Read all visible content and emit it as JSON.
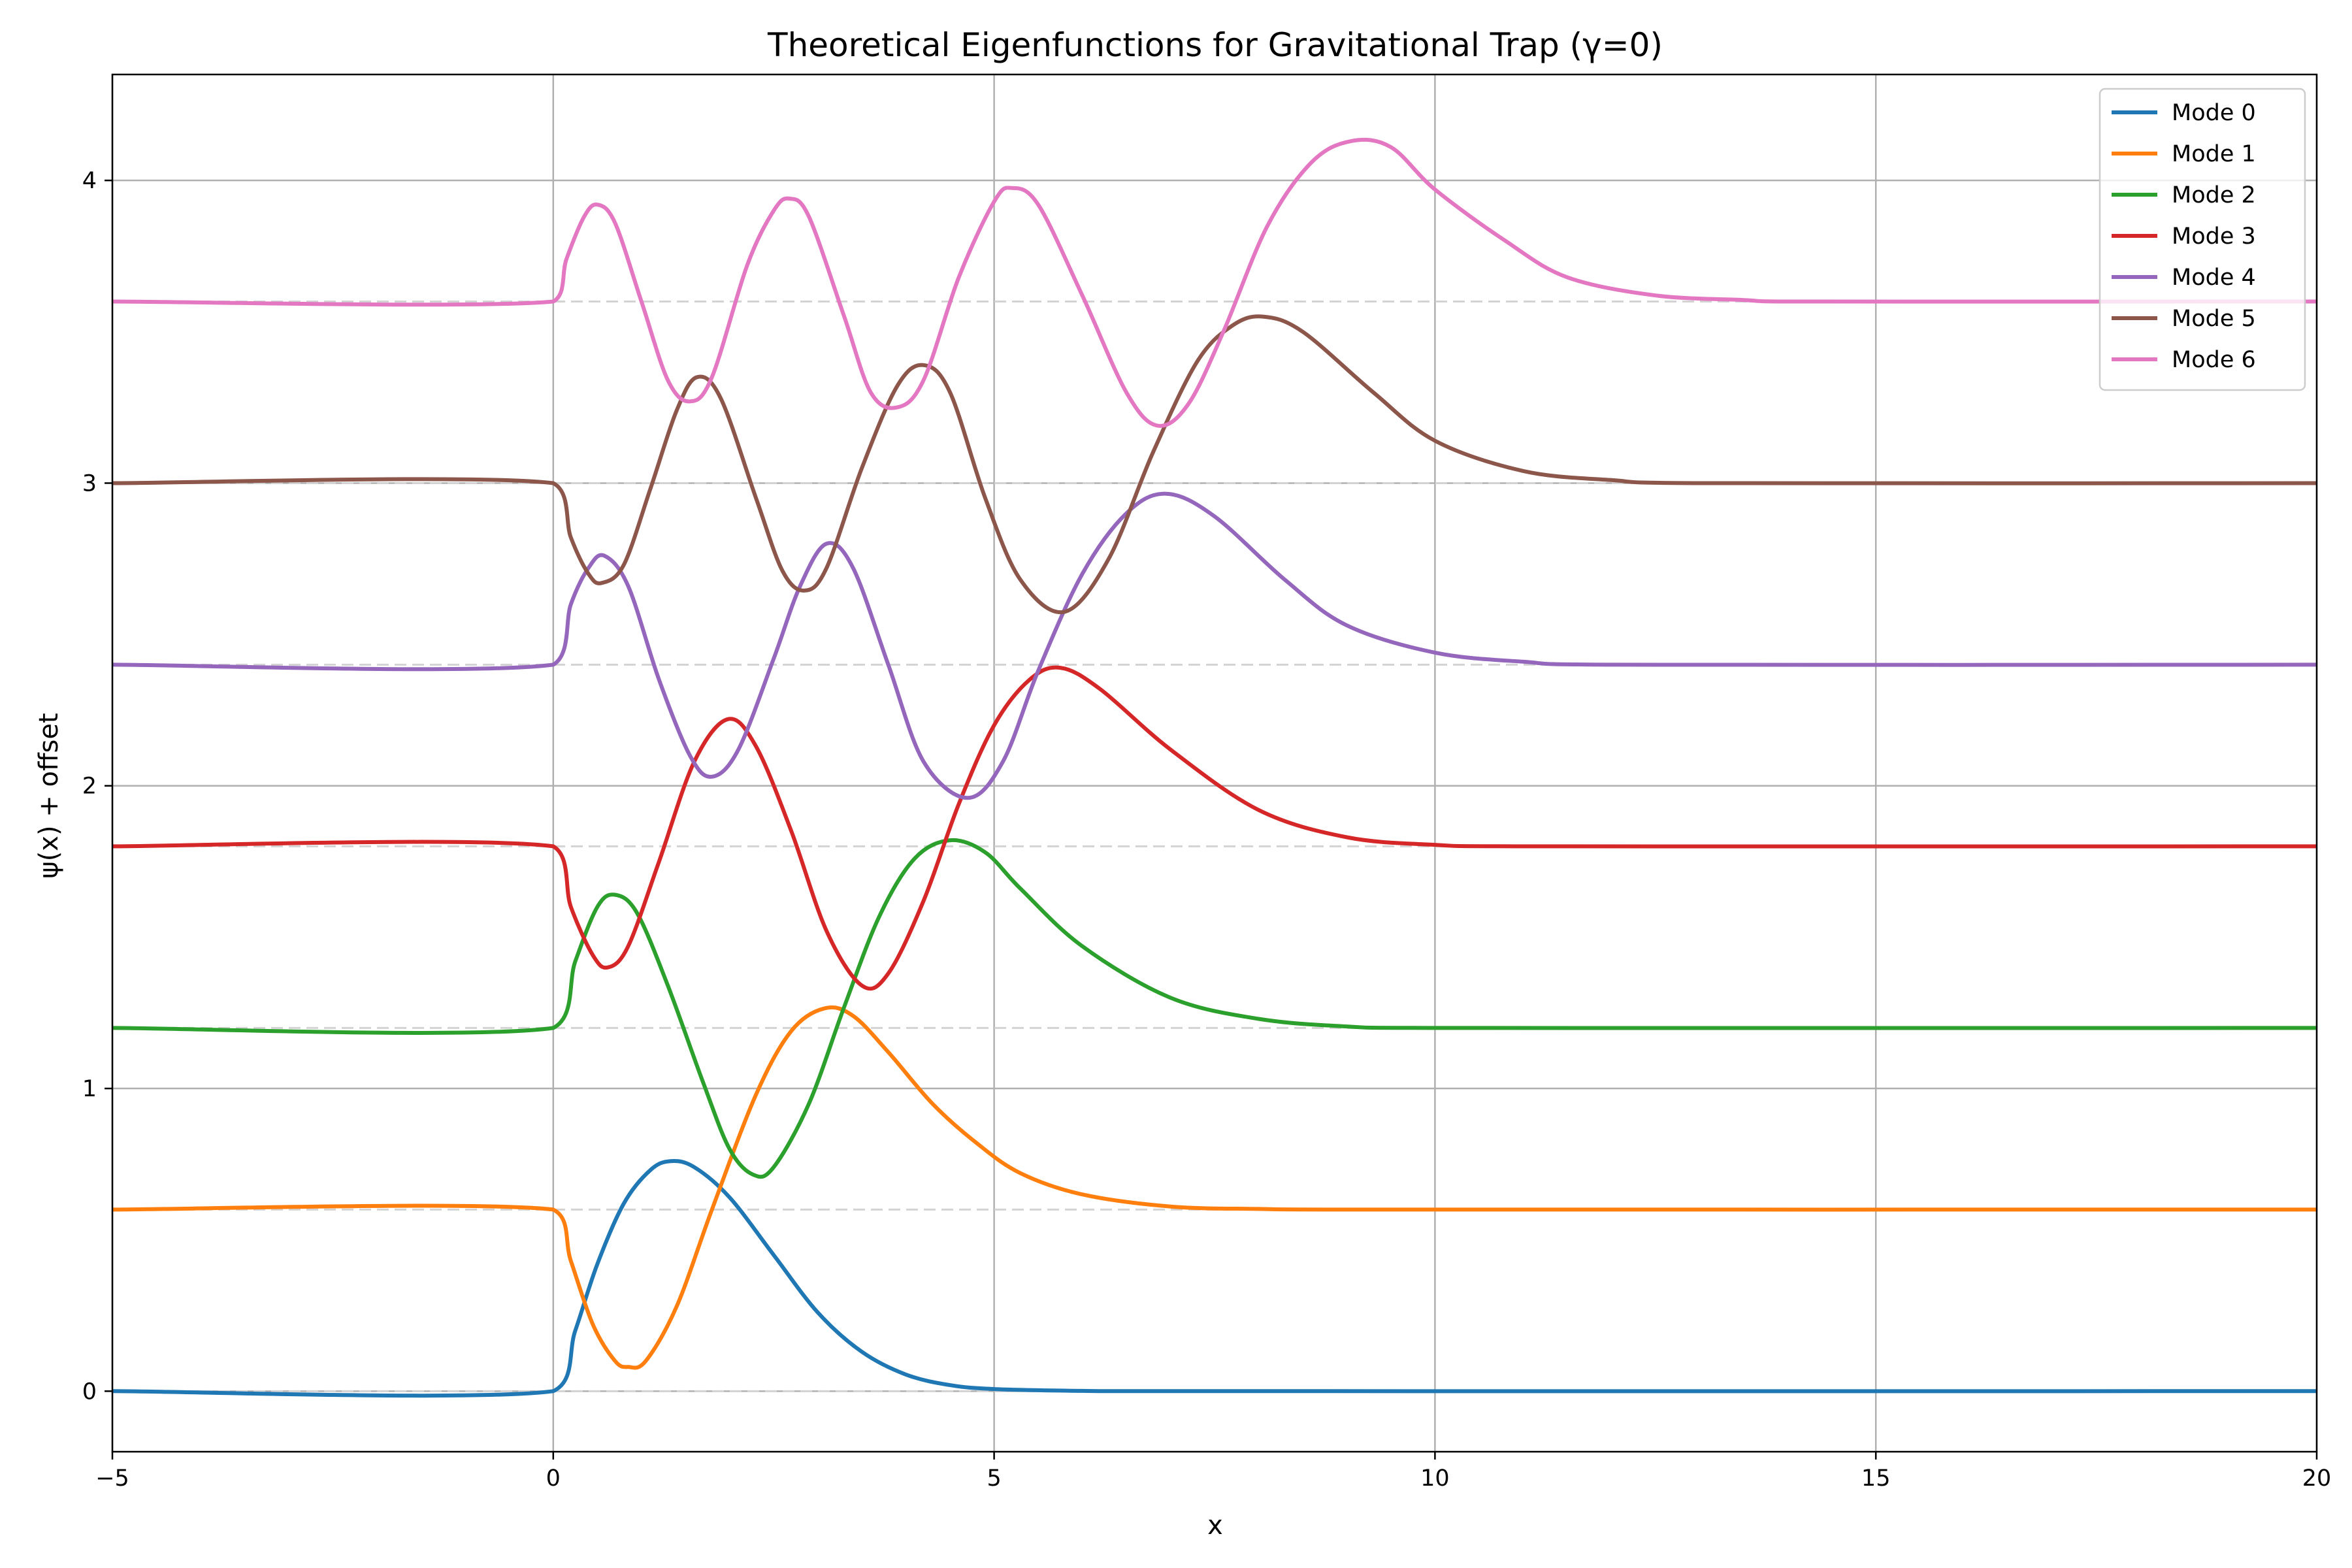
{
  "chart_data": {
    "type": "line",
    "title": "Theoretical Eigenfunctions for Gravitational Trap (γ=0)",
    "xlabel": "x",
    "ylabel": "ψ(x) + offset",
    "xlim": [
      -5,
      20
    ],
    "ylim": [
      -0.2,
      4.35
    ],
    "xticks": [
      -5,
      0,
      5,
      10,
      15,
      20
    ],
    "xtick_labels": [
      "−5",
      "0",
      "5",
      "10",
      "15",
      "20"
    ],
    "yticks": [
      0,
      1,
      2,
      3,
      4
    ],
    "ytick_labels": [
      "0",
      "1",
      "2",
      "3",
      "4"
    ],
    "grid": true,
    "legend_position": "top-right",
    "baseline_style": "dashed light gray at each offset",
    "series": [
      {
        "name": "Mode 0",
        "color": "#1f77b4",
        "offset": 0.0,
        "points": [
          [
            -5,
            0
          ],
          [
            0,
            0
          ],
          [
            0.25,
            0.2
          ],
          [
            0.5,
            0.42
          ],
          [
            0.8,
            0.62
          ],
          [
            1.1,
            0.73
          ],
          [
            1.33,
            0.76
          ],
          [
            1.6,
            0.74
          ],
          [
            2.0,
            0.64
          ],
          [
            2.5,
            0.45
          ],
          [
            3.0,
            0.26
          ],
          [
            3.5,
            0.13
          ],
          [
            4.0,
            0.055
          ],
          [
            4.5,
            0.02
          ],
          [
            5.0,
            0.007
          ],
          [
            6.0,
            0.001
          ],
          [
            7,
            0
          ],
          [
            20,
            0
          ]
        ]
      },
      {
        "name": "Mode 1",
        "color": "#ff7f0e",
        "offset": 0.6,
        "points": [
          [
            -5,
            0.6
          ],
          [
            0,
            0.6
          ],
          [
            0.2,
            0.43
          ],
          [
            0.45,
            0.22
          ],
          [
            0.7,
            0.1
          ],
          [
            0.85,
            0.08
          ],
          [
            1.05,
            0.1
          ],
          [
            1.4,
            0.28
          ],
          [
            1.8,
            0.6
          ],
          [
            2.3,
            0.98
          ],
          [
            2.7,
            1.19
          ],
          [
            3.08,
            1.265
          ],
          [
            3.4,
            1.24
          ],
          [
            3.8,
            1.12
          ],
          [
            4.3,
            0.95
          ],
          [
            4.8,
            0.82
          ],
          [
            5.3,
            0.72
          ],
          [
            6.0,
            0.65
          ],
          [
            7.0,
            0.61
          ],
          [
            8.0,
            0.602
          ],
          [
            9,
            0.6
          ],
          [
            20,
            0.6
          ]
        ]
      },
      {
        "name": "Mode 2",
        "color": "#2ca02c",
        "offset": 1.2,
        "points": [
          [
            -5,
            1.2
          ],
          [
            0,
            1.2
          ],
          [
            0.25,
            1.42
          ],
          [
            0.5,
            1.6
          ],
          [
            0.7,
            1.64
          ],
          [
            0.95,
            1.58
          ],
          [
            1.3,
            1.34
          ],
          [
            1.7,
            1.02
          ],
          [
            2.0,
            0.8
          ],
          [
            2.27,
            0.715
          ],
          [
            2.5,
            0.74
          ],
          [
            2.9,
            0.95
          ],
          [
            3.3,
            1.27
          ],
          [
            3.7,
            1.57
          ],
          [
            4.1,
            1.76
          ],
          [
            4.5,
            1.82
          ],
          [
            4.9,
            1.78
          ],
          [
            5.3,
            1.66
          ],
          [
            6.0,
            1.47
          ],
          [
            7.0,
            1.3
          ],
          [
            8.0,
            1.23
          ],
          [
            9.0,
            1.205
          ],
          [
            10,
            1.2
          ],
          [
            20,
            1.2
          ]
        ]
      },
      {
        "name": "Mode 3",
        "color": "#d62728",
        "offset": 1.8,
        "points": [
          [
            -5,
            1.8
          ],
          [
            0,
            1.8
          ],
          [
            0.2,
            1.6
          ],
          [
            0.45,
            1.44
          ],
          [
            0.62,
            1.4
          ],
          [
            0.85,
            1.47
          ],
          [
            1.2,
            1.75
          ],
          [
            1.6,
            2.08
          ],
          [
            1.98,
            2.22
          ],
          [
            2.3,
            2.13
          ],
          [
            2.7,
            1.85
          ],
          [
            3.1,
            1.52
          ],
          [
            3.5,
            1.34
          ],
          [
            3.8,
            1.38
          ],
          [
            4.2,
            1.62
          ],
          [
            4.6,
            1.94
          ],
          [
            5.0,
            2.2
          ],
          [
            5.4,
            2.35
          ],
          [
            5.75,
            2.39
          ],
          [
            6.2,
            2.32
          ],
          [
            7.0,
            2.12
          ],
          [
            8.0,
            1.92
          ],
          [
            9.0,
            1.83
          ],
          [
            10.0,
            1.805
          ],
          [
            11,
            1.8
          ],
          [
            20,
            1.8
          ]
        ]
      },
      {
        "name": "Mode 4",
        "color": "#9467bd",
        "offset": 2.4,
        "points": [
          [
            -5,
            2.4
          ],
          [
            0,
            2.4
          ],
          [
            0.2,
            2.6
          ],
          [
            0.4,
            2.72
          ],
          [
            0.58,
            2.76
          ],
          [
            0.85,
            2.66
          ],
          [
            1.2,
            2.35
          ],
          [
            1.55,
            2.1
          ],
          [
            1.8,
            2.03
          ],
          [
            2.1,
            2.12
          ],
          [
            2.5,
            2.42
          ],
          [
            2.8,
            2.66
          ],
          [
            3.1,
            2.8
          ],
          [
            3.4,
            2.72
          ],
          [
            3.8,
            2.4
          ],
          [
            4.2,
            2.08
          ],
          [
            4.7,
            1.96
          ],
          [
            5.1,
            2.08
          ],
          [
            5.5,
            2.38
          ],
          [
            6.0,
            2.7
          ],
          [
            6.5,
            2.9
          ],
          [
            6.95,
            2.965
          ],
          [
            7.5,
            2.89
          ],
          [
            8.3,
            2.68
          ],
          [
            9.0,
            2.53
          ],
          [
            10.0,
            2.44
          ],
          [
            11.0,
            2.41
          ],
          [
            12,
            2.4
          ],
          [
            20,
            2.4
          ]
        ]
      },
      {
        "name": "Mode 5",
        "color": "#8c564b",
        "offset": 3.0,
        "points": [
          [
            -5,
            3.0
          ],
          [
            0,
            3.0
          ],
          [
            0.2,
            2.82
          ],
          [
            0.4,
            2.7
          ],
          [
            0.55,
            2.67
          ],
          [
            0.8,
            2.73
          ],
          [
            1.1,
            2.98
          ],
          [
            1.4,
            3.24
          ],
          [
            1.63,
            3.35
          ],
          [
            1.9,
            3.28
          ],
          [
            2.3,
            2.95
          ],
          [
            2.6,
            2.71
          ],
          [
            2.85,
            2.645
          ],
          [
            3.1,
            2.72
          ],
          [
            3.5,
            3.05
          ],
          [
            3.9,
            3.32
          ],
          [
            4.2,
            3.39
          ],
          [
            4.5,
            3.3
          ],
          [
            4.9,
            2.95
          ],
          [
            5.3,
            2.68
          ],
          [
            5.8,
            2.575
          ],
          [
            6.3,
            2.75
          ],
          [
            6.8,
            3.1
          ],
          [
            7.3,
            3.4
          ],
          [
            7.7,
            3.52
          ],
          [
            8.05,
            3.55
          ],
          [
            8.5,
            3.5
          ],
          [
            9.3,
            3.3
          ],
          [
            10.0,
            3.14
          ],
          [
            11.0,
            3.04
          ],
          [
            12.0,
            3.01
          ],
          [
            13,
            3.0
          ],
          [
            20,
            3.0
          ]
        ]
      },
      {
        "name": "Mode 6",
        "color": "#e377c2",
        "offset": 3.6,
        "points": [
          [
            -5,
            3.6
          ],
          [
            0,
            3.6
          ],
          [
            0.15,
            3.74
          ],
          [
            0.35,
            3.88
          ],
          [
            0.5,
            3.92
          ],
          [
            0.7,
            3.86
          ],
          [
            1.0,
            3.6
          ],
          [
            1.3,
            3.34
          ],
          [
            1.55,
            3.27
          ],
          [
            1.8,
            3.35
          ],
          [
            2.2,
            3.72
          ],
          [
            2.5,
            3.9
          ],
          [
            2.68,
            3.94
          ],
          [
            2.9,
            3.88
          ],
          [
            3.3,
            3.55
          ],
          [
            3.6,
            3.3
          ],
          [
            3.9,
            3.25
          ],
          [
            4.2,
            3.34
          ],
          [
            4.6,
            3.68
          ],
          [
            5.0,
            3.93
          ],
          [
            5.2,
            3.975
          ],
          [
            5.5,
            3.92
          ],
          [
            6.0,
            3.62
          ],
          [
            6.5,
            3.3
          ],
          [
            6.85,
            3.19
          ],
          [
            7.2,
            3.26
          ],
          [
            7.6,
            3.5
          ],
          [
            8.1,
            3.85
          ],
          [
            8.6,
            4.06
          ],
          [
            9.05,
            4.13
          ],
          [
            9.5,
            4.11
          ],
          [
            10.0,
            3.97
          ],
          [
            10.8,
            3.8
          ],
          [
            11.5,
            3.68
          ],
          [
            12.5,
            3.62
          ],
          [
            13.5,
            3.605
          ],
          [
            14,
            3.6
          ],
          [
            20,
            3.6
          ]
        ]
      }
    ]
  }
}
